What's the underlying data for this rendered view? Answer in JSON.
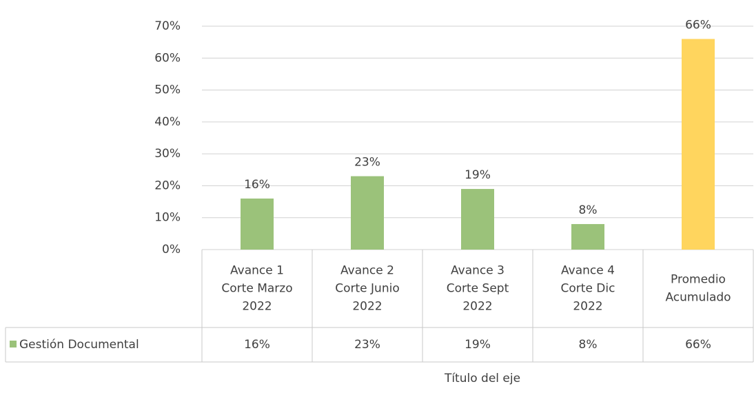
{
  "chart_data": {
    "type": "bar",
    "categories": [
      [
        "Avance 1",
        "Corte Marzo",
        "2022"
      ],
      [
        "Avance 2",
        "Corte Junio",
        "2022"
      ],
      [
        "Avance 3",
        "Corte Sept",
        "2022"
      ],
      [
        "Avance 4",
        "Corte Dic",
        "2022"
      ],
      [
        "Promedio",
        "Acumulado"
      ]
    ],
    "series": [
      {
        "name": "Gestión Documental",
        "color": "#9bc27a",
        "colors": [
          "#9bc27a",
          "#9bc27a",
          "#9bc27a",
          "#9bc27a",
          "#ffd55e"
        ],
        "values": [
          16,
          23,
          19,
          8,
          66
        ],
        "value_labels": [
          "16%",
          "23%",
          "19%",
          "8%",
          "66%"
        ]
      }
    ],
    "x_label": "Título del eje",
    "ylim": [
      0,
      70
    ],
    "yticks": [
      {
        "value": 0,
        "label": "0%"
      },
      {
        "value": 10,
        "label": "10%"
      },
      {
        "value": 20,
        "label": "20%"
      },
      {
        "value": 30,
        "label": "30%"
      },
      {
        "value": 40,
        "label": "40%"
      },
      {
        "value": 50,
        "label": "50%"
      },
      {
        "value": 60,
        "label": "60%"
      },
      {
        "value": 70,
        "label": "70%"
      }
    ],
    "grid": true
  }
}
